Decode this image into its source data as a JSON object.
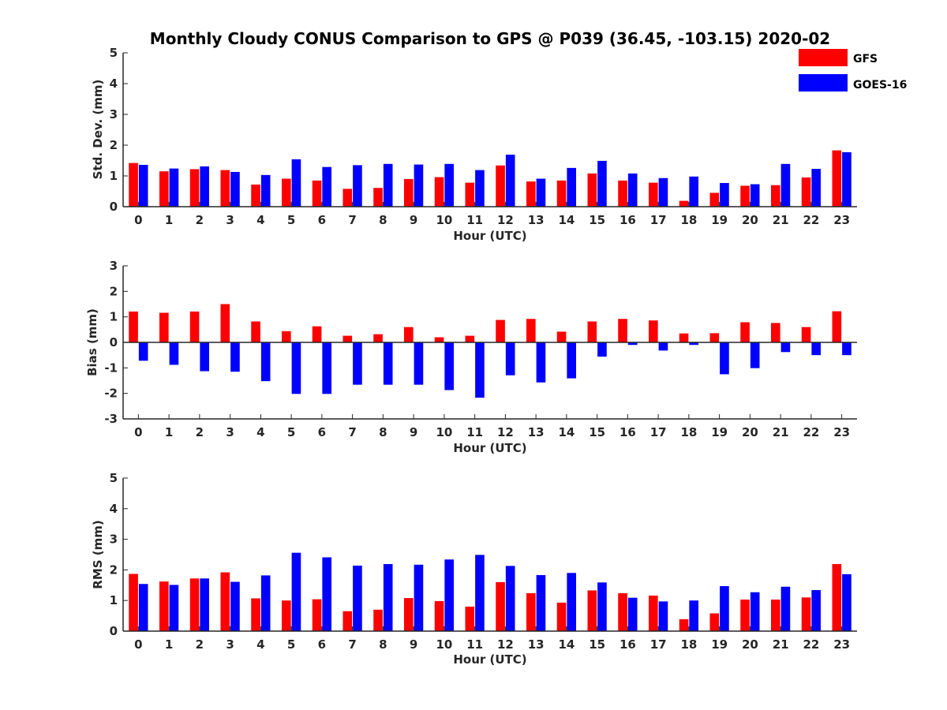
{
  "figure": {
    "title": "Monthly Cloudy CONUS Comparison to GPS @ P039 (36.45, -103.15) 2020-02"
  },
  "legend": {
    "items": [
      {
        "label": "GFS",
        "color": "#ff0000"
      },
      {
        "label": "GOES-16",
        "color": "#0000ff"
      }
    ],
    "placement": "top-right"
  },
  "chart_data": [
    {
      "type": "bar",
      "xlabel": "Hour (UTC)",
      "ylabel": "Std. Dev. (mm)",
      "ylim": [
        0,
        5
      ],
      "yticks": [
        "0",
        "1",
        "2",
        "3",
        "4",
        "5"
      ],
      "categories": [
        "0",
        "1",
        "2",
        "3",
        "4",
        "5",
        "6",
        "7",
        "8",
        "9",
        "10",
        "11",
        "12",
        "13",
        "14",
        "15",
        "16",
        "17",
        "18",
        "19",
        "20",
        "21",
        "22",
        "23"
      ],
      "series": [
        {
          "name": "GFS",
          "color": "#ff0000",
          "values": [
            1.42,
            1.15,
            1.22,
            1.19,
            0.72,
            0.91,
            0.85,
            0.58,
            0.61,
            0.9,
            0.96,
            0.78,
            1.34,
            0.82,
            0.85,
            1.08,
            0.85,
            0.78,
            0.19,
            0.45,
            0.68,
            0.7,
            0.95,
            1.83
          ]
        },
        {
          "name": "GOES-16",
          "color": "#0000ff",
          "values": [
            1.36,
            1.24,
            1.31,
            1.13,
            1.03,
            1.54,
            1.29,
            1.35,
            1.39,
            1.37,
            1.39,
            1.19,
            1.69,
            0.91,
            1.26,
            1.49,
            1.08,
            0.93,
            0.98,
            0.77,
            0.73,
            1.39,
            1.23,
            1.77
          ]
        }
      ]
    },
    {
      "type": "bar",
      "xlabel": "Hour (UTC)",
      "ylabel": "Bias (mm)",
      "ylim": [
        -3,
        3
      ],
      "yticks": [
        "-3",
        "-2",
        "-1",
        "0",
        "1",
        "2",
        "3"
      ],
      "categories": [
        "0",
        "1",
        "2",
        "3",
        "4",
        "5",
        "6",
        "7",
        "8",
        "9",
        "10",
        "11",
        "12",
        "13",
        "14",
        "15",
        "16",
        "17",
        "18",
        "19",
        "20",
        "21",
        "22",
        "23"
      ],
      "series": [
        {
          "name": "GFS",
          "color": "#ff0000",
          "values": [
            1.21,
            1.16,
            1.21,
            1.5,
            0.82,
            0.44,
            0.63,
            0.26,
            0.32,
            0.6,
            0.2,
            0.26,
            0.88,
            0.92,
            0.42,
            0.82,
            0.92,
            0.86,
            0.35,
            0.36,
            0.79,
            0.76,
            0.6,
            1.22
          ]
        },
        {
          "name": "GOES-16",
          "color": "#0000ff",
          "values": [
            -0.72,
            -0.88,
            -1.13,
            -1.15,
            -1.52,
            -2.02,
            -2.02,
            -1.66,
            -1.66,
            -1.66,
            -1.87,
            -2.17,
            -1.29,
            -1.57,
            -1.41,
            -0.56,
            -0.1,
            -0.32,
            -0.1,
            -1.25,
            -1.01,
            -0.38,
            -0.5,
            -0.5
          ]
        }
      ]
    },
    {
      "type": "bar",
      "xlabel": "Hour (UTC)",
      "ylabel": "RMS (mm)",
      "ylim": [
        0,
        5
      ],
      "yticks": [
        "0",
        "1",
        "2",
        "3",
        "4",
        "5"
      ],
      "categories": [
        "0",
        "1",
        "2",
        "3",
        "4",
        "5",
        "6",
        "7",
        "8",
        "9",
        "10",
        "11",
        "12",
        "13",
        "14",
        "15",
        "16",
        "17",
        "18",
        "19",
        "20",
        "21",
        "22",
        "23"
      ],
      "series": [
        {
          "name": "GFS",
          "color": "#ff0000",
          "values": [
            1.87,
            1.62,
            1.72,
            1.92,
            1.07,
            1.0,
            1.04,
            0.65,
            0.7,
            1.08,
            0.98,
            0.8,
            1.6,
            1.24,
            0.93,
            1.33,
            1.24,
            1.16,
            0.39,
            0.58,
            1.03,
            1.03,
            1.1,
            2.19
          ]
        },
        {
          "name": "GOES-16",
          "color": "#0000ff",
          "values": [
            1.54,
            1.51,
            1.72,
            1.61,
            1.82,
            2.56,
            2.41,
            2.14,
            2.19,
            2.17,
            2.34,
            2.49,
            2.13,
            1.83,
            1.9,
            1.59,
            1.09,
            0.97,
            1.0,
            1.47,
            1.27,
            1.45,
            1.34,
            1.86
          ]
        }
      ]
    }
  ]
}
